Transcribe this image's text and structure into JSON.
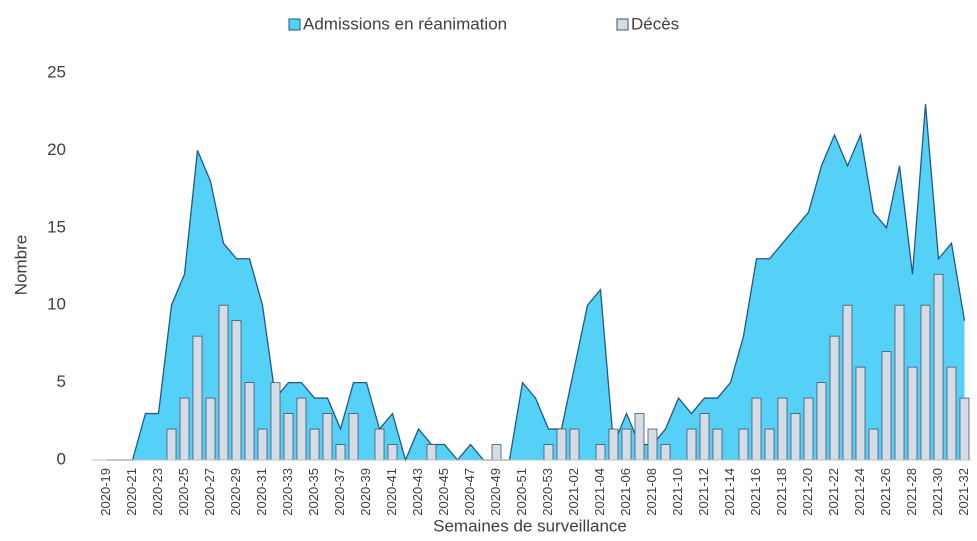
{
  "chart_data": {
    "type": "combo",
    "categories": [
      "2020-19",
      null,
      "2020-21",
      null,
      "2020-23",
      null,
      "2020-25",
      null,
      "2020-27",
      null,
      "2020-29",
      null,
      "2020-31",
      null,
      "2020-33",
      null,
      "2020-35",
      null,
      "2020-37",
      null,
      "2020-39",
      null,
      "2020-41",
      null,
      "2020-43",
      null,
      "2020-45",
      null,
      "2020-47",
      null,
      "2020-49",
      null,
      "2020-51",
      null,
      "2020-53",
      null,
      "2021-02",
      null,
      "2021-04",
      null,
      "2021-06",
      null,
      "2021-08",
      null,
      "2021-10",
      null,
      "2021-12",
      null,
      "2021-14",
      null,
      "2021-16",
      null,
      "2021-18",
      null,
      "2021-20",
      null,
      "2021-22",
      null,
      "2021-24",
      null,
      "2021-26",
      null,
      "2021-28",
      null,
      "2021-30",
      null,
      "2021-32"
    ],
    "series": [
      {
        "name": "Admissions en réanimation",
        "type": "area",
        "color": "#55d0f7",
        "line_color": "#1f5a85",
        "values": [
          0,
          0,
          0,
          3,
          3,
          10,
          12,
          20,
          18,
          14,
          13,
          13,
          10,
          4,
          5,
          5,
          4,
          4,
          2,
          5,
          5,
          2,
          3,
          0,
          2,
          1,
          1,
          0,
          1,
          0,
          0,
          0,
          5,
          4,
          2,
          2,
          6,
          10,
          11,
          1,
          3,
          1,
          1,
          2,
          4,
          3,
          4,
          4,
          5,
          8,
          13,
          13,
          14,
          15,
          16,
          19,
          21,
          19,
          21,
          16,
          15,
          19,
          12,
          23,
          13,
          14,
          9
        ]
      },
      {
        "name": "Décès",
        "type": "bar",
        "color": "#d6dce5",
        "line_color": "#44546a",
        "values": [
          0,
          0,
          0,
          0,
          0,
          2,
          4,
          8,
          4,
          10,
          9,
          5,
          2,
          5,
          3,
          4,
          2,
          3,
          1,
          3,
          0,
          2,
          1,
          0,
          0,
          1,
          0,
          0,
          0,
          0,
          1,
          0,
          0,
          0,
          1,
          2,
          2,
          0,
          1,
          2,
          2,
          3,
          2,
          1,
          0,
          2,
          3,
          2,
          0,
          2,
          4,
          2,
          4,
          3,
          4,
          5,
          8,
          10,
          6,
          2,
          7,
          10,
          6,
          10,
          12,
          6,
          4
        ]
      }
    ],
    "ylim": [
      0,
      25
    ],
    "yticks": [
      0,
      5,
      10,
      15,
      20,
      25
    ],
    "ylabel": "Nombre",
    "xlabel": "Semaines de surveillance",
    "legend": "top",
    "grid": false
  }
}
